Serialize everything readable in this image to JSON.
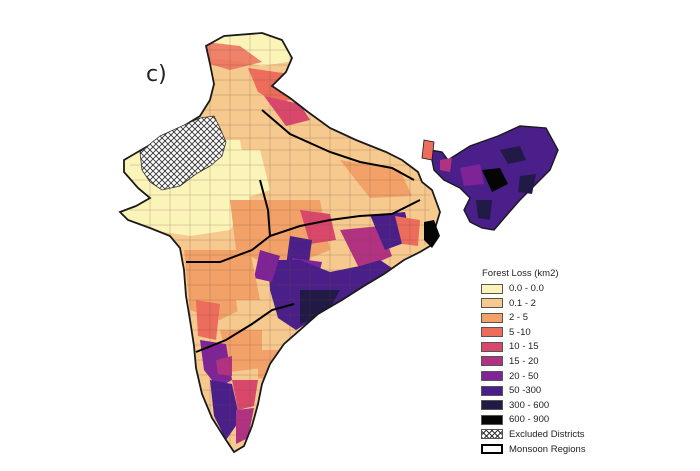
{
  "panel_label": "c)",
  "legend": {
    "title": "Forest Loss (km2)",
    "classes": [
      {
        "label": "0.0 - 0.0",
        "color": "#fbf4b8"
      },
      {
        "label": "0.1 - 2",
        "color": "#f6c98f"
      },
      {
        "label": "2 - 5",
        "color": "#f2a269"
      },
      {
        "label": "5 -10",
        "color": "#ec6d5b"
      },
      {
        "label": "10 - 15",
        "color": "#d9486b"
      },
      {
        "label": "15 - 20",
        "color": "#b23282"
      },
      {
        "label": "20 - 50",
        "color": "#7e2496"
      },
      {
        "label": "50 -300",
        "color": "#4a1f8a"
      },
      {
        "label": "300 - 600",
        "color": "#221a46"
      },
      {
        "label": "600 - 900",
        "color": "#050505"
      }
    ],
    "excluded_label": "Excluded Districts",
    "regions_label": "Monsoon Regions"
  }
}
